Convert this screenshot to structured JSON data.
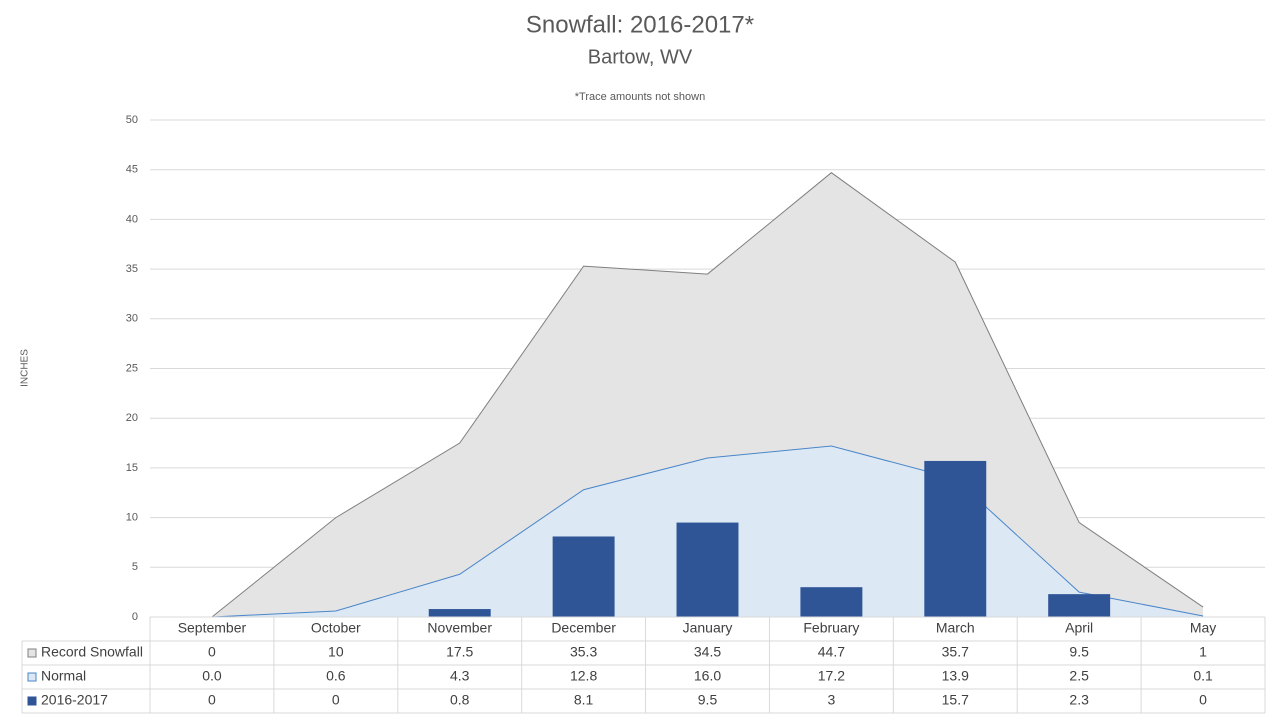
{
  "chart_data": {
    "type": "combo",
    "title": "Snowfall: 2016-2017*",
    "subtitle": "Bartow, WV",
    "annotation": "*Trace amounts not shown",
    "y_label": "INCHES",
    "categories": [
      "September",
      "October",
      "November",
      "December",
      "January",
      "February",
      "March",
      "April",
      "May"
    ],
    "series": [
      {
        "name": "Record Snowfall",
        "type": "area",
        "color": "#e4e4e4",
        "line_color": "#7f7f7f",
        "values": [
          0,
          10,
          17.5,
          35.3,
          34.5,
          44.7,
          35.7,
          9.5,
          1
        ]
      },
      {
        "name": "Normal",
        "type": "area",
        "color": "#dde8f5",
        "line_color": "#4a86c8",
        "values": [
          0,
          0.6,
          4.3,
          12.8,
          16,
          17.2,
          13.9,
          2.5,
          0.1
        ],
        "value_labels": [
          "0.0",
          "0.6",
          "4.3",
          "12.8",
          "16.0",
          "17.2",
          "13.9",
          "2.5",
          "0.1"
        ]
      },
      {
        "name": "2016-2017",
        "type": "bar",
        "color": "#2f5597",
        "values": [
          0,
          0,
          0.8,
          8.1,
          9.5,
          3,
          15.7,
          2.3,
          0
        ]
      }
    ],
    "ylim": [
      0,
      50
    ],
    "yticks": [
      0,
      5,
      10,
      15,
      20,
      25,
      30,
      35,
      40,
      45,
      50
    ],
    "grid": true
  }
}
